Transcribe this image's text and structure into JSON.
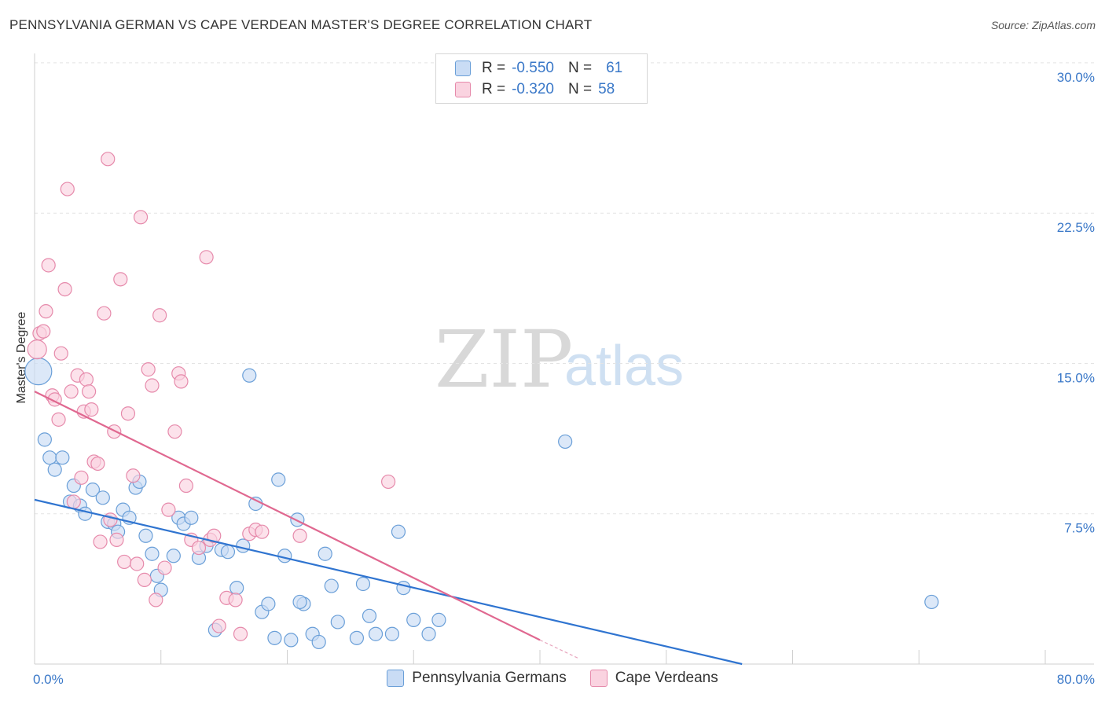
{
  "title": "PENNSYLVANIA GERMAN VS CAPE VERDEAN MASTER'S DEGREE CORRELATION CHART",
  "source": "Source: ZipAtlas.com",
  "watermark": {
    "zip": "ZIP",
    "atlas": "atlas"
  },
  "legend_top": {
    "rows": [
      {
        "r_label": "R =",
        "r_value": "-0.550",
        "n_label": "N =",
        "n_value": "61",
        "color": "#a8c8f0",
        "border": "#6a9fd8"
      },
      {
        "r_label": "R =",
        "r_value": "-0.320",
        "n_label": "N =",
        "n_value": "58",
        "color": "#f7bfd2",
        "border": "#e68aab"
      }
    ]
  },
  "legend_bottom": [
    {
      "label": "Pennsylvania Germans",
      "color": "#c9dcf5",
      "border": "#6a9fd8"
    },
    {
      "label": "Cape Verdeans",
      "color": "#fad3e0",
      "border": "#e68aab"
    }
  ],
  "chart_data": {
    "type": "scatter",
    "title": "PENNSYLVANIA GERMAN VS CAPE VERDEAN MASTER'S DEGREE CORRELATION CHART",
    "xlabel": "",
    "ylabel": "Master's Degree",
    "xlim": [
      0,
      80
    ],
    "ylim": [
      0,
      30
    ],
    "x_tick_labels": [
      "0.0%",
      "80.0%"
    ],
    "y_ticks": [
      7.5,
      15.0,
      22.5,
      30.0
    ],
    "y_tick_labels": [
      "7.5%",
      "15.0%",
      "22.5%",
      "30.0%"
    ],
    "grid": true,
    "series": [
      {
        "name": "Pennsylvania Germans",
        "color": "#6a9fd8",
        "fill": "#c9dcf5",
        "trend": {
          "x0": 0,
          "y0": 8.2,
          "x1": 56,
          "y1": 0
        },
        "points": [
          [
            0.3,
            14.6
          ],
          [
            0.8,
            11.2
          ],
          [
            1.2,
            10.3
          ],
          [
            1.6,
            9.7
          ],
          [
            2.2,
            10.3
          ],
          [
            2.8,
            8.1
          ],
          [
            3.1,
            8.9
          ],
          [
            3.6,
            7.9
          ],
          [
            4.0,
            7.5
          ],
          [
            4.6,
            8.7
          ],
          [
            5.4,
            8.3
          ],
          [
            5.8,
            7.1
          ],
          [
            6.3,
            7.0
          ],
          [
            6.6,
            6.6
          ],
          [
            7.0,
            7.7
          ],
          [
            7.5,
            7.3
          ],
          [
            8.0,
            8.8
          ],
          [
            8.3,
            9.1
          ],
          [
            8.8,
            6.4
          ],
          [
            9.3,
            5.5
          ],
          [
            9.7,
            4.4
          ],
          [
            10.0,
            3.7
          ],
          [
            11.0,
            5.4
          ],
          [
            11.4,
            7.3
          ],
          [
            11.8,
            7.0
          ],
          [
            12.4,
            7.3
          ],
          [
            13.0,
            5.3
          ],
          [
            13.6,
            5.9
          ],
          [
            14.3,
            1.7
          ],
          [
            14.8,
            5.7
          ],
          [
            15.3,
            5.6
          ],
          [
            16.0,
            3.8
          ],
          [
            16.5,
            5.9
          ],
          [
            17.0,
            14.4
          ],
          [
            17.5,
            8.0
          ],
          [
            18.0,
            2.6
          ],
          [
            18.5,
            3.0
          ],
          [
            19.0,
            1.3
          ],
          [
            19.3,
            9.2
          ],
          [
            19.8,
            5.4
          ],
          [
            20.3,
            1.2
          ],
          [
            20.8,
            7.2
          ],
          [
            21.3,
            3.0
          ],
          [
            22.0,
            1.5
          ],
          [
            22.5,
            1.1
          ],
          [
            23.0,
            5.5
          ],
          [
            23.5,
            3.9
          ],
          [
            24.0,
            2.1
          ],
          [
            25.5,
            1.3
          ],
          [
            26.0,
            4.0
          ],
          [
            26.5,
            2.4
          ],
          [
            27.0,
            1.5
          ],
          [
            28.3,
            1.5
          ],
          [
            28.8,
            6.6
          ],
          [
            29.2,
            3.8
          ],
          [
            30.0,
            2.2
          ],
          [
            31.2,
            1.5
          ],
          [
            42.0,
            11.1
          ],
          [
            71.0,
            3.1
          ],
          [
            32.0,
            2.2
          ],
          [
            21.0,
            3.1
          ]
        ]
      },
      {
        "name": "Cape Verdeans",
        "color": "#e68aab",
        "fill": "#fad3e0",
        "trend": {
          "x0": 0,
          "y0": 13.6,
          "x1": 40,
          "y1": 1.2
        },
        "trend_dashed": {
          "x0": 40,
          "y0": 1.2,
          "x1": 43,
          "y1": 0.3
        },
        "points": [
          [
            0.2,
            15.7
          ],
          [
            0.4,
            16.5
          ],
          [
            0.7,
            16.6
          ],
          [
            0.9,
            17.6
          ],
          [
            1.1,
            19.9
          ],
          [
            1.4,
            13.4
          ],
          [
            1.6,
            13.2
          ],
          [
            1.9,
            12.2
          ],
          [
            2.1,
            15.5
          ],
          [
            2.4,
            18.7
          ],
          [
            2.6,
            23.7
          ],
          [
            2.9,
            13.6
          ],
          [
            3.1,
            8.1
          ],
          [
            3.4,
            14.4
          ],
          [
            3.7,
            9.3
          ],
          [
            3.9,
            12.6
          ],
          [
            4.1,
            14.2
          ],
          [
            4.3,
            13.6
          ],
          [
            4.5,
            12.7
          ],
          [
            4.7,
            10.1
          ],
          [
            5.0,
            10.0
          ],
          [
            5.2,
            6.1
          ],
          [
            5.5,
            17.5
          ],
          [
            5.8,
            25.2
          ],
          [
            6.0,
            7.2
          ],
          [
            6.3,
            11.6
          ],
          [
            6.5,
            6.2
          ],
          [
            6.8,
            19.2
          ],
          [
            7.1,
            5.1
          ],
          [
            7.4,
            12.5
          ],
          [
            7.8,
            9.4
          ],
          [
            8.1,
            5.0
          ],
          [
            8.4,
            22.3
          ],
          [
            8.7,
            4.2
          ],
          [
            9.0,
            14.7
          ],
          [
            9.3,
            13.9
          ],
          [
            9.6,
            3.2
          ],
          [
            9.9,
            17.4
          ],
          [
            10.3,
            4.8
          ],
          [
            10.6,
            7.7
          ],
          [
            11.1,
            11.6
          ],
          [
            11.4,
            14.5
          ],
          [
            11.6,
            14.1
          ],
          [
            12.0,
            8.9
          ],
          [
            12.4,
            6.2
          ],
          [
            13.0,
            5.8
          ],
          [
            13.6,
            20.3
          ],
          [
            13.9,
            6.2
          ],
          [
            14.2,
            6.4
          ],
          [
            14.6,
            1.9
          ],
          [
            15.2,
            3.3
          ],
          [
            15.9,
            3.2
          ],
          [
            16.3,
            1.5
          ],
          [
            17.0,
            6.5
          ],
          [
            17.5,
            6.7
          ],
          [
            18.0,
            6.6
          ],
          [
            21.0,
            6.4
          ],
          [
            28.0,
            9.1
          ]
        ]
      }
    ]
  }
}
